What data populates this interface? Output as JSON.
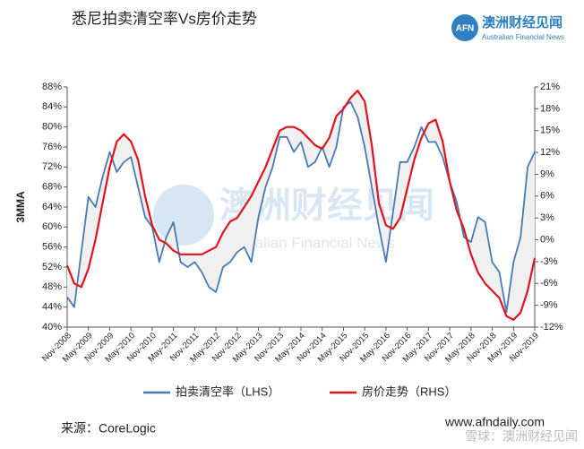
{
  "chart_data": {
    "type": "line",
    "title": "悉尼拍卖清空率Vs房价走势",
    "ylabel": "3MMA",
    "categories": [
      "Nov-2008",
      null,
      null,
      "May-2009",
      null,
      null,
      "Nov-2009",
      null,
      null,
      "May-2010",
      null,
      null,
      "Nov-2010",
      null,
      null,
      "May-2011",
      null,
      null,
      "Nov-2011",
      null,
      null,
      "May-2012",
      null,
      null,
      "Nov-2012",
      null,
      null,
      "May-2013",
      null,
      null,
      "Nov-2013",
      null,
      null,
      "May-2014",
      null,
      null,
      "Nov-2014",
      null,
      null,
      "May-2015",
      null,
      null,
      "Nov-2015",
      null,
      null,
      "May-2016",
      null,
      null,
      "Nov-2016",
      null,
      null,
      "May-2017",
      null,
      null,
      "Nov-2017",
      null,
      null,
      "May-2018",
      null,
      null,
      "Nov-2018",
      null,
      null,
      "May-2019",
      null,
      null,
      "Nov-2019"
    ],
    "series": [
      {
        "name": "拍卖清空率（LHS）",
        "color": "#4a7ab5",
        "axis": "y",
        "values": [
          46,
          44,
          55,
          66,
          64,
          70,
          75,
          71,
          73,
          74,
          68,
          62,
          60,
          53,
          58,
          61,
          53,
          52,
          53,
          51,
          48,
          47,
          52,
          53,
          55,
          56,
          53,
          62,
          68,
          72,
          78,
          78,
          75,
          77,
          72,
          73,
          76,
          72,
          76,
          84,
          85,
          82,
          76,
          68,
          60,
          53,
          63,
          73,
          73,
          76,
          80,
          77,
          77,
          74,
          69,
          65,
          58,
          57,
          62,
          61,
          53,
          51,
          43,
          53,
          58,
          72,
          75
        ]
      },
      {
        "name": "房价走势（RHS）",
        "color": "#e0141e",
        "axis": "y2",
        "values": [
          -3.5,
          -6,
          -6.5,
          -4,
          0,
          5,
          10,
          13.5,
          14.5,
          13.5,
          11,
          6,
          2,
          0,
          -0.5,
          -1.5,
          -2,
          -2,
          -2,
          -2,
          -1.5,
          -1,
          1,
          2.5,
          3,
          4.5,
          6,
          8,
          10,
          12.5,
          15,
          15.5,
          15.5,
          15,
          14,
          13,
          12.5,
          14,
          17,
          18,
          19.5,
          20.5,
          19,
          13,
          5,
          2,
          1.5,
          3,
          7,
          11,
          14,
          16,
          16.5,
          13.5,
          8,
          4,
          1.5,
          -2,
          -4.5,
          -6,
          -7,
          -8,
          -10.5,
          -11,
          -10,
          -7,
          -2.5
        ]
      }
    ],
    "ylim": [
      40,
      88
    ],
    "yticks": [
      {
        "value": 40,
        "label": "40%"
      },
      {
        "value": 44,
        "label": "44%"
      },
      {
        "value": 48,
        "label": "48%"
      },
      {
        "value": 52,
        "label": "52%"
      },
      {
        "value": 56,
        "label": "56%"
      },
      {
        "value": 60,
        "label": "60%"
      },
      {
        "value": 64,
        "label": "64%"
      },
      {
        "value": 68,
        "label": "68%"
      },
      {
        "value": 72,
        "label": "72%"
      },
      {
        "value": 76,
        "label": "76%"
      },
      {
        "value": 80,
        "label": "80%"
      },
      {
        "value": 84,
        "label": "84%"
      },
      {
        "value": 88,
        "label": "88%"
      }
    ],
    "y2lim": [
      -12,
      21
    ],
    "y2ticks": [
      {
        "value": -12,
        "label": "-12%"
      },
      {
        "value": -9,
        "label": "-9%"
      },
      {
        "value": -6,
        "label": "-6%"
      },
      {
        "value": -3,
        "label": "-3%"
      },
      {
        "value": 0,
        "label": "0%"
      },
      {
        "value": 3,
        "label": "3%"
      },
      {
        "value": 6,
        "label": "6%"
      },
      {
        "value": 9,
        "label": "9%"
      },
      {
        "value": 12,
        "label": "12%"
      },
      {
        "value": 15,
        "label": "15%"
      },
      {
        "value": 18,
        "label": "18%"
      },
      {
        "value": 21,
        "label": "21%"
      }
    ],
    "fill_between": true,
    "legend": "bottom"
  },
  "logo": {
    "mark": "AFN",
    "name": "澳洲财经见闻",
    "subtitle": "Australian Financial News"
  },
  "watermark": {
    "name": "澳洲财经见闻",
    "subtitle": "Australian Financial News",
    "footer": "雪球：澳洲财经见闻"
  },
  "source": "来源：CoreLogic",
  "website": "www.afndaily.com"
}
